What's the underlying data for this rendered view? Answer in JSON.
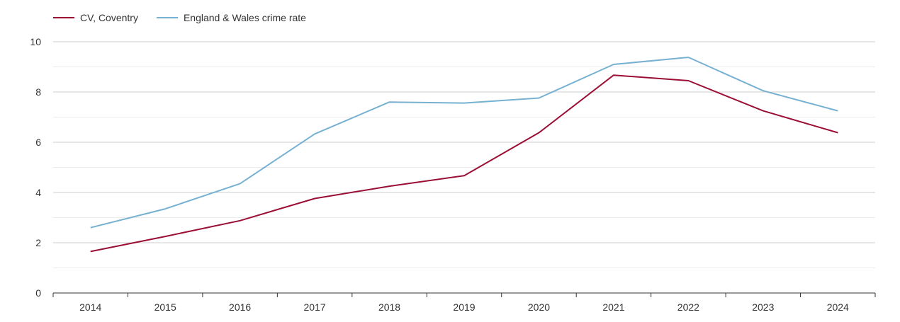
{
  "chart_data": {
    "type": "line",
    "title": "",
    "xlabel": "",
    "ylabel": "",
    "x": [
      2014,
      2015,
      2016,
      2017,
      2018,
      2019,
      2020,
      2021,
      2022,
      2023,
      2024
    ],
    "ylim": [
      0,
      10
    ],
    "yticks": [
      0,
      2,
      4,
      6,
      8,
      10
    ],
    "grid": true,
    "legend_position": "top-left",
    "series": [
      {
        "name": "CV, Coventry",
        "color": "#9b0f35",
        "values": [
          1.65,
          2.25,
          2.88,
          3.76,
          4.25,
          4.67,
          6.38,
          8.67,
          8.45,
          7.25,
          6.38
        ]
      },
      {
        "name": "England & Wales crime rate",
        "color": "#76b1d1",
        "values": [
          2.6,
          3.35,
          4.35,
          6.33,
          7.6,
          7.56,
          7.76,
          9.1,
          9.38,
          8.05,
          7.25
        ]
      }
    ]
  }
}
